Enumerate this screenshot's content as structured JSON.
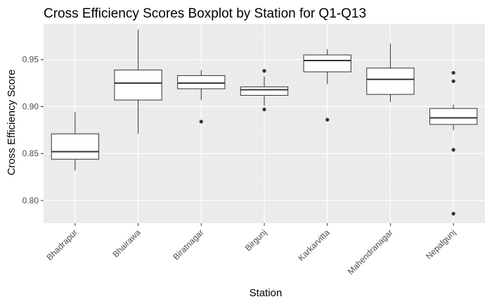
{
  "chart_data": {
    "type": "boxplot",
    "title": "Cross Efficiency Scores Boxplot by Station for Q1-Q13",
    "xlabel": "Station",
    "ylabel": "Cross Efficiency Score",
    "ylim": [
      0.776,
      0.988
    ],
    "yticks": [
      0.8,
      0.85,
      0.9,
      0.95
    ],
    "ytick_labels": [
      "0.80",
      "0.85",
      "0.90",
      "0.95"
    ],
    "grid": true,
    "legend": "none",
    "colors": {
      "panel_background": "#ebebeb",
      "grid_major": "#ffffff",
      "grid_minor": "#f5f5f5",
      "box_fill": "#ffffff",
      "box_stroke": "#333333",
      "outlier": "#333333",
      "tick_mark": "#333333",
      "tick_text": "#4d4d4d"
    },
    "categories": [
      "Bhadrapur",
      "Bhairawa",
      "Biratnagar",
      "Birgunj",
      "Karkarvitta",
      "Mahendranagar",
      "Nepalgunj"
    ],
    "boxes": [
      {
        "lower_whisker": 0.832,
        "q1": 0.844,
        "median": 0.852,
        "q3": 0.871,
        "upper_whisker": 0.894,
        "outliers": []
      },
      {
        "lower_whisker": 0.871,
        "q1": 0.907,
        "median": 0.925,
        "q3": 0.939,
        "upper_whisker": 0.982,
        "outliers": []
      },
      {
        "lower_whisker": 0.907,
        "q1": 0.919,
        "median": 0.925,
        "q3": 0.933,
        "upper_whisker": 0.939,
        "outliers": [
          0.884
        ]
      },
      {
        "lower_whisker": 0.901,
        "q1": 0.912,
        "median": 0.918,
        "q3": 0.921,
        "upper_whisker": 0.932,
        "outliers": [
          0.938,
          0.897
        ]
      },
      {
        "lower_whisker": 0.924,
        "q1": 0.937,
        "median": 0.949,
        "q3": 0.955,
        "upper_whisker": 0.961,
        "outliers": [
          0.886
        ]
      },
      {
        "lower_whisker": 0.905,
        "q1": 0.913,
        "median": 0.929,
        "q3": 0.941,
        "upper_whisker": 0.967,
        "outliers": []
      },
      {
        "lower_whisker": 0.875,
        "q1": 0.881,
        "median": 0.888,
        "q3": 0.898,
        "upper_whisker": 0.902,
        "outliers": [
          0.936,
          0.927,
          0.854,
          0.786
        ]
      }
    ]
  }
}
